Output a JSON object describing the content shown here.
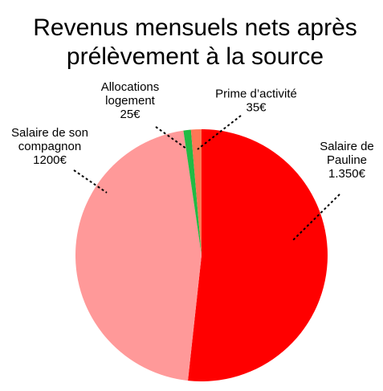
{
  "chart_data": {
    "type": "pie",
    "title": [
      "Revenus mensuels nets après",
      "prélèvement à la source"
    ],
    "slices": [
      {
        "key": "salaire_pauline",
        "label_lines": [
          "Salaire de",
          "Pauline",
          "1.350€"
        ],
        "value": 1350,
        "color": "#ff0000"
      },
      {
        "key": "salaire_compagnon",
        "label_lines": [
          "Salaire de son",
          "compagnon",
          "1200€"
        ],
        "value": 1200,
        "color": "#ff9999"
      },
      {
        "key": "allocations_logement",
        "label_lines": [
          "Allocations",
          "logement",
          "25€"
        ],
        "value": 25,
        "color": "#22bb44"
      },
      {
        "key": "prime_activite",
        "label_lines": [
          "Prime d’activité",
          "35€"
        ],
        "value": 35,
        "color": "#ff7755"
      }
    ],
    "legend": "none"
  }
}
